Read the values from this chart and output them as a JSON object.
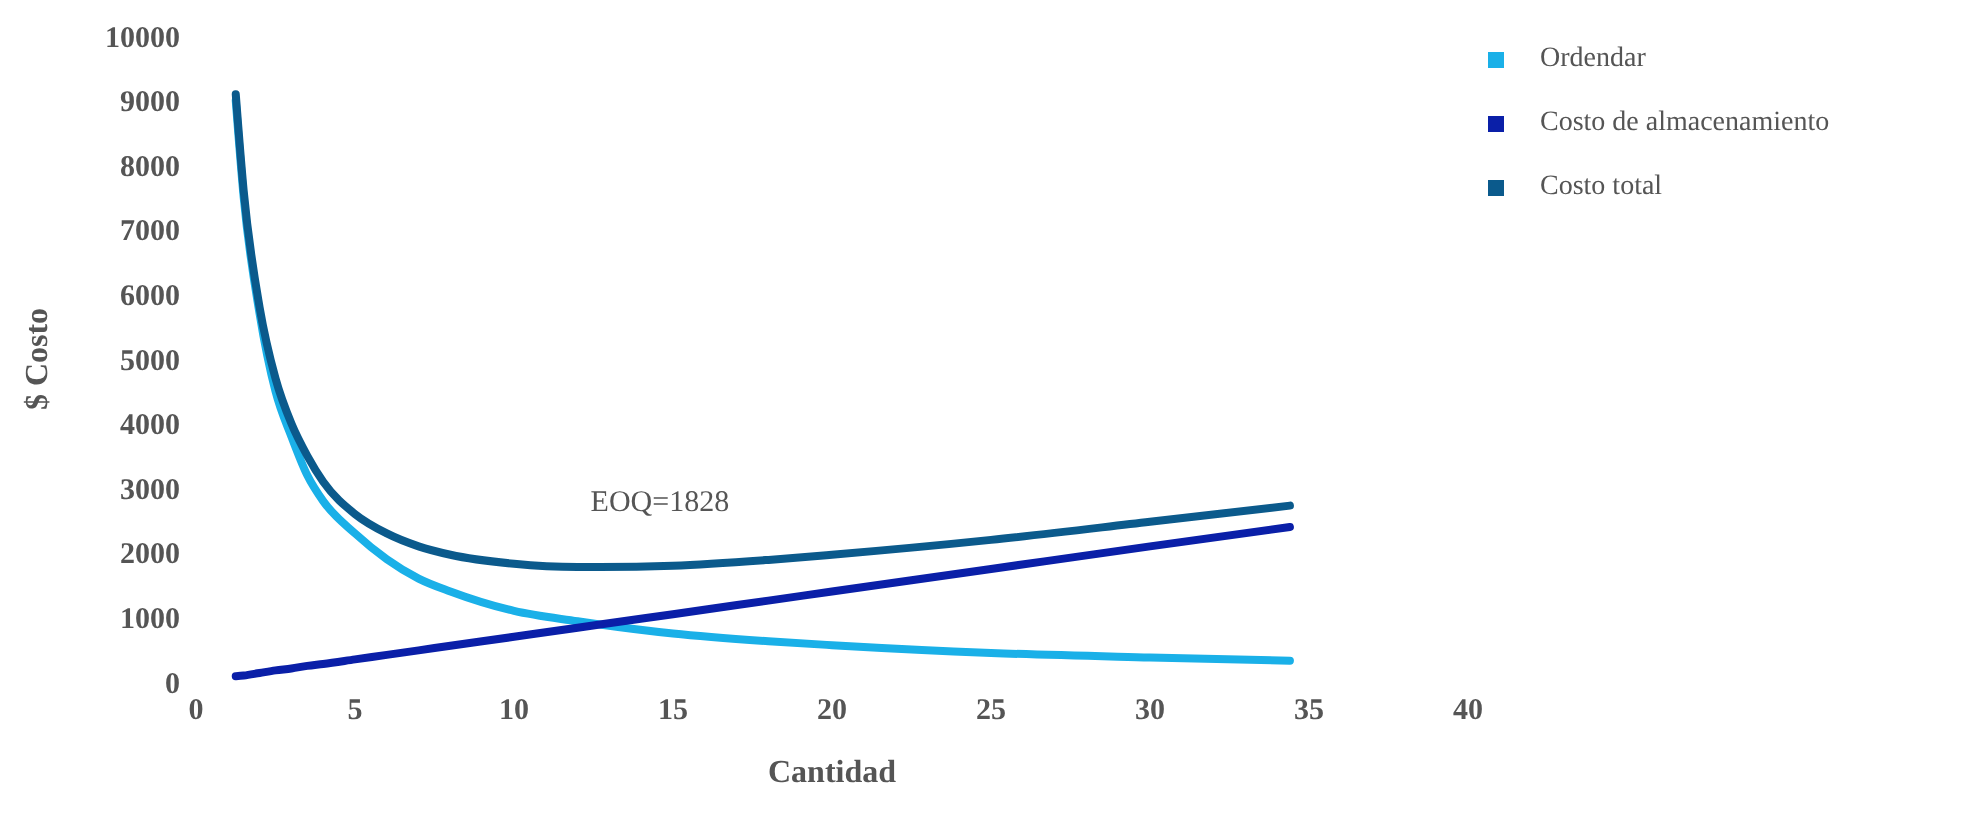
{
  "chart_data": {
    "type": "line",
    "xlabel": "Cantidad",
    "ylabel": "$ Costo",
    "x": [
      1.25,
      1.5,
      2,
      2.5,
      3,
      3.5,
      4,
      5,
      6,
      7,
      8,
      10,
      12,
      12.7,
      15,
      18,
      20,
      25,
      30,
      34.4
    ],
    "series": [
      {
        "name": "Ordendar",
        "color": "#1ab0e8",
        "values": [
          9000,
          7500,
          5700,
          4500,
          3800,
          3200,
          2800,
          2300,
          1900,
          1600,
          1400,
          1100,
          940,
          890,
          750,
          630,
          570,
          450,
          380,
          330
        ]
      },
      {
        "name": "Costo de almacenamiento",
        "color": "#0a1fa8",
        "values": [
          90,
          100,
          140,
          180,
          210,
          250,
          280,
          350,
          420,
          490,
          560,
          700,
          840,
          890,
          1050,
          1260,
          1400,
          1750,
          2100,
          2400
        ]
      },
      {
        "name": "Costo total",
        "color": "#0b5a8c",
        "values": [
          9100,
          7600,
          5800,
          4700,
          4000,
          3500,
          3100,
          2600,
          2300,
          2100,
          1970,
          1830,
          1780,
          1780,
          1800,
          1890,
          1970,
          2200,
          2480,
          2730
        ]
      }
    ],
    "xlim": [
      0,
      40
    ],
    "xticks": [
      0,
      5,
      10,
      15,
      20,
      25,
      30,
      35,
      40
    ],
    "ylim": [
      0,
      10000
    ],
    "yticks": [
      0,
      1000,
      2000,
      3000,
      4000,
      5000,
      6000,
      7000,
      8000,
      9000,
      10000
    ],
    "annotations": [
      {
        "text": "EOQ=1828",
        "x": 12.7,
        "y": 1780
      }
    ],
    "grid": false,
    "legend": "top right",
    "marker": "none",
    "line_style": "solid"
  }
}
